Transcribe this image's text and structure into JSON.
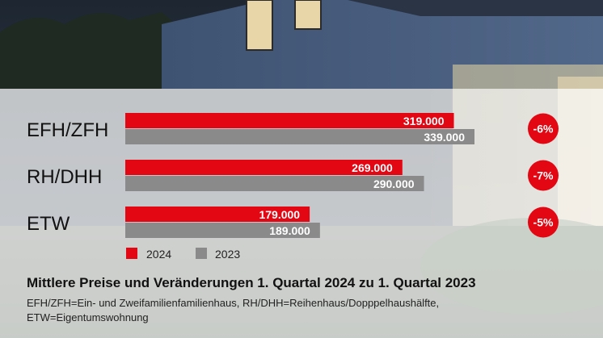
{
  "colors": {
    "series_2024": "#e30613",
    "series_2023": "#8a8a8a",
    "badge": "#e30613"
  },
  "chart_data": {
    "type": "bar",
    "orientation": "horizontal",
    "categories": [
      "EFH/ZFH",
      "RH/DHH",
      "ETW"
    ],
    "series": [
      {
        "name": "2024",
        "values": [
          319000,
          269000,
          179000
        ],
        "labels": [
          "319.000",
          "269.000",
          "179.000"
        ]
      },
      {
        "name": "2023",
        "values": [
          339000,
          290000,
          189000
        ],
        "labels": [
          "339.000",
          "290.000",
          "189.000"
        ]
      }
    ],
    "changes": [
      "-6%",
      "-7%",
      "-5%"
    ],
    "title": "Mittlere Preise und Veränderungen 1. Quartal 2024 zu 1. Quartal 2023",
    "legend_placement": "bottom-left",
    "grid": false
  },
  "footnote": {
    "line1": "EFH/ZFH=Ein- und Zweifamilienfamilienhaus, RH/DHH=Reihenhaus/Dopppelhaushälfte,",
    "line2": "ETW=Eigentumswohnung"
  }
}
